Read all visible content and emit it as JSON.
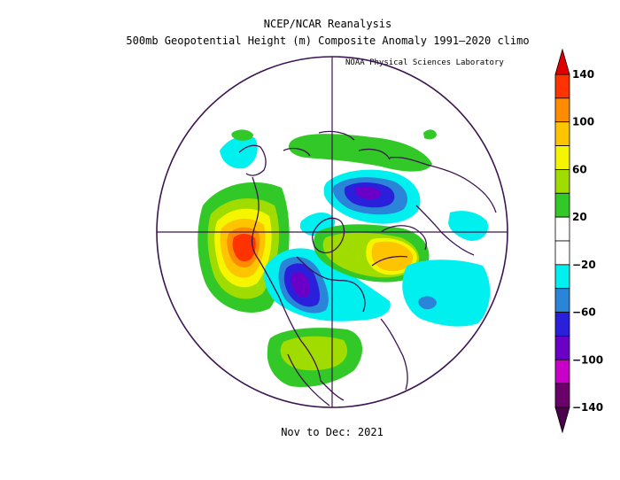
{
  "header": {
    "line1": "NCEP/NCAR Reanalysis",
    "line2": "500mb Geopotential Height (m) Composite Anomaly 1991–2020 climo",
    "credit": "NOAA Physical Sciences Laboratory"
  },
  "footer": {
    "period": "Nov to Dec: 2021"
  },
  "map": {
    "projection": "north-polar-stereographic",
    "variable": "500mb geopotential height anomaly",
    "units": "m"
  },
  "colorbar": {
    "levels": [
      -140,
      -100,
      -60,
      -20,
      20,
      60,
      100,
      140
    ],
    "labels": [
      "140",
      "100",
      "60",
      "20",
      "−20",
      "−60",
      "−100",
      "−140"
    ],
    "colors": [
      "#ff3300",
      "#ff8c00",
      "#ffc400",
      "#f5f500",
      "#a0dc00",
      "#32c828",
      "#ffffff",
      "#ffffff",
      "#00f0f0",
      "#2a84d8",
      "#2a20dc",
      "#6a00c8",
      "#c800c8",
      "#6a006a"
    ]
  }
}
